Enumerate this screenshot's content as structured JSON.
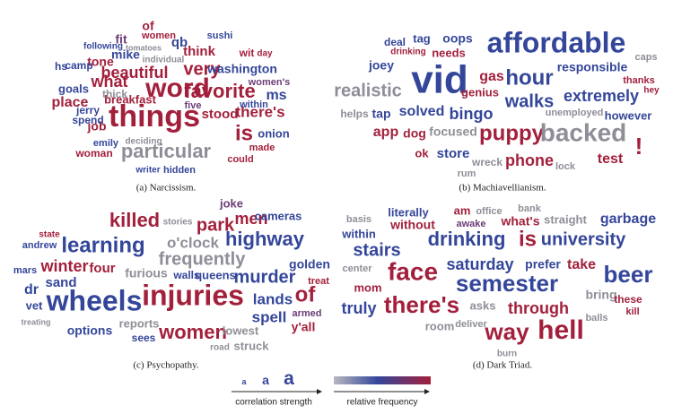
{
  "panels": [
    {
      "caption": "(a) Narcissism.",
      "words": [
        {
          "text": "things",
          "color": "#a3203c"
        },
        {
          "text": "word",
          "color": "#a3203c"
        },
        {
          "text": "favorite",
          "color": "#a3203c"
        },
        {
          "text": "particular",
          "color": "#8e8e98"
        },
        {
          "text": "beautiful",
          "color": "#a3203c"
        },
        {
          "text": "very",
          "color": "#a3203c"
        },
        {
          "text": "think",
          "color": "#a3203c"
        },
        {
          "text": "washington",
          "color": "#34469a"
        },
        {
          "text": "what",
          "color": "#a3203c"
        },
        {
          "text": "is",
          "color": "#a3203c"
        },
        {
          "text": "there's",
          "color": "#a3203c"
        },
        {
          "text": "stood",
          "color": "#a3203c"
        },
        {
          "text": "job",
          "color": "#a3203c"
        },
        {
          "text": "breakfast",
          "color": "#a3203c"
        },
        {
          "text": "five",
          "color": "#6c3c78"
        },
        {
          "text": "place",
          "color": "#a3203c"
        },
        {
          "text": "mike",
          "color": "#34469a"
        },
        {
          "text": "fit",
          "color": "#6c3c78"
        },
        {
          "text": "qb",
          "color": "#34469a"
        },
        {
          "text": "of",
          "color": "#a3203c"
        },
        {
          "text": "women",
          "color": "#a3203c"
        },
        {
          "text": "sushi",
          "color": "#34469a"
        },
        {
          "text": "tone",
          "color": "#a3203c"
        },
        {
          "text": "goals",
          "color": "#34469a"
        },
        {
          "text": "camp",
          "color": "#34469a"
        },
        {
          "text": "hs",
          "color": "#34469a"
        },
        {
          "text": "thick",
          "color": "#8e8e98"
        },
        {
          "text": "jerry",
          "color": "#34469a"
        },
        {
          "text": "spend",
          "color": "#34469a"
        },
        {
          "text": "emily",
          "color": "#34469a"
        },
        {
          "text": "woman",
          "color": "#a3203c"
        },
        {
          "text": "onion",
          "color": "#34469a"
        },
        {
          "text": "ms",
          "color": "#34469a"
        },
        {
          "text": "within",
          "color": "#34469a"
        },
        {
          "text": "could",
          "color": "#a3203c"
        },
        {
          "text": "made",
          "color": "#a3203c"
        },
        {
          "text": "hidden",
          "color": "#34469a"
        },
        {
          "text": "writer",
          "color": "#34469a"
        },
        {
          "text": "wit",
          "color": "#a3203c"
        },
        {
          "text": "day",
          "color": "#a3203c"
        },
        {
          "text": "women's",
          "color": "#6c3c78"
        },
        {
          "text": "deciding",
          "color": "#8e8e98"
        },
        {
          "text": "individual",
          "color": "#8e8e98"
        },
        {
          "text": "tomatoes",
          "color": "#8e8e98"
        },
        {
          "text": "following",
          "color": "#34469a"
        }
      ]
    },
    {
      "caption": "(b) Machiavellianism.",
      "words": [
        {
          "text": "affordable",
          "color": "#34469a"
        },
        {
          "text": "vid",
          "color": "#34469a"
        },
        {
          "text": "realistic",
          "color": "#8e8e98"
        },
        {
          "text": "hour",
          "color": "#34469a"
        },
        {
          "text": "responsible",
          "color": "#34469a"
        },
        {
          "text": "walks",
          "color": "#34469a"
        },
        {
          "text": "extremely",
          "color": "#34469a"
        },
        {
          "text": "puppy",
          "color": "#a3203c"
        },
        {
          "text": "backed",
          "color": "#8e8e98"
        },
        {
          "text": "phone",
          "color": "#a3203c"
        },
        {
          "text": "test",
          "color": "#a3203c"
        },
        {
          "text": "!",
          "color": "#a3203c"
        },
        {
          "text": "however",
          "color": "#34469a"
        },
        {
          "text": "thanks",
          "color": "#a3203c"
        },
        {
          "text": "caps",
          "color": "#8e8e98"
        },
        {
          "text": "hey",
          "color": "#a3203c"
        },
        {
          "text": "bingo",
          "color": "#34469a"
        },
        {
          "text": "solved",
          "color": "#34469a"
        },
        {
          "text": "focused",
          "color": "#8e8e98"
        },
        {
          "text": "store",
          "color": "#34469a"
        },
        {
          "text": "gas",
          "color": "#a3203c"
        },
        {
          "text": "needs",
          "color": "#a3203c"
        },
        {
          "text": "drinking",
          "color": "#a3203c"
        },
        {
          "text": "oops",
          "color": "#34469a"
        },
        {
          "text": "tag",
          "color": "#34469a"
        },
        {
          "text": "deal",
          "color": "#34469a"
        },
        {
          "text": "joey",
          "color": "#34469a"
        },
        {
          "text": "genius",
          "color": "#a3203c"
        },
        {
          "text": "tap",
          "color": "#34469a"
        },
        {
          "text": "app",
          "color": "#a3203c"
        },
        {
          "text": "dog",
          "color": "#a3203c"
        },
        {
          "text": "helps",
          "color": "#8e8e98"
        },
        {
          "text": "unemployed",
          "color": "#8e8e98"
        },
        {
          "text": "wreck",
          "color": "#8e8e98"
        },
        {
          "text": "rum",
          "color": "#8e8e98"
        },
        {
          "text": "lock",
          "color": "#8e8e98"
        },
        {
          "text": "ok",
          "color": "#a3203c"
        }
      ]
    },
    {
      "caption": "(c) Psychopathy.",
      "words": [
        {
          "text": "injuries",
          "color": "#a3203c"
        },
        {
          "text": "wheels",
          "color": "#34469a"
        },
        {
          "text": "learning",
          "color": "#34469a"
        },
        {
          "text": "killed",
          "color": "#a3203c"
        },
        {
          "text": "park",
          "color": "#a3203c"
        },
        {
          "text": "men",
          "color": "#a3203c"
        },
        {
          "text": "joke",
          "color": "#6c3c78"
        },
        {
          "text": "highway",
          "color": "#34469a"
        },
        {
          "text": "o'clock",
          "color": "#8e8e98"
        },
        {
          "text": "frequently",
          "color": "#8e8e98"
        },
        {
          "text": "murder",
          "color": "#34469a"
        },
        {
          "text": "women",
          "color": "#a3203c"
        },
        {
          "text": "of",
          "color": "#a3203c"
        },
        {
          "text": "winter",
          "color": "#a3203c"
        },
        {
          "text": "sand",
          "color": "#34469a"
        },
        {
          "text": "vet",
          "color": "#34469a"
        },
        {
          "text": "dr",
          "color": "#34469a"
        },
        {
          "text": "four",
          "color": "#a3203c"
        },
        {
          "text": "furious",
          "color": "#8e8e98"
        },
        {
          "text": "walls",
          "color": "#34469a"
        },
        {
          "text": "queens",
          "color": "#34469a"
        },
        {
          "text": "lands",
          "color": "#34469a"
        },
        {
          "text": "spell",
          "color": "#34469a"
        },
        {
          "text": "y'all",
          "color": "#a3203c"
        },
        {
          "text": "struck",
          "color": "#8e8e98"
        },
        {
          "text": "lowest",
          "color": "#8e8e98"
        },
        {
          "text": "reports",
          "color": "#8e8e98"
        },
        {
          "text": "options",
          "color": "#34469a"
        },
        {
          "text": "sees",
          "color": "#34469a"
        },
        {
          "text": "armed",
          "color": "#6c3c78"
        },
        {
          "text": "golden",
          "color": "#34469a"
        },
        {
          "text": "treat",
          "color": "#a3203c"
        },
        {
          "text": "cameras",
          "color": "#34469a"
        },
        {
          "text": "stories",
          "color": "#8e8e98"
        },
        {
          "text": "andrew",
          "color": "#34469a"
        },
        {
          "text": "state",
          "color": "#a3203c"
        },
        {
          "text": "mars",
          "color": "#34469a"
        },
        {
          "text": "treating",
          "color": "#8e8e98"
        },
        {
          "text": "road",
          "color": "#8e8e98"
        }
      ]
    },
    {
      "caption": "(d) Dark Triad.",
      "words": [
        {
          "text": "hell",
          "color": "#a3203c"
        },
        {
          "text": "way",
          "color": "#a3203c"
        },
        {
          "text": "semester",
          "color": "#34469a"
        },
        {
          "text": "there's",
          "color": "#a3203c"
        },
        {
          "text": "face",
          "color": "#a3203c"
        },
        {
          "text": "drinking",
          "color": "#34469a"
        },
        {
          "text": "is",
          "color": "#a3203c"
        },
        {
          "text": "university",
          "color": "#34469a"
        },
        {
          "text": "stairs",
          "color": "#34469a"
        },
        {
          "text": "saturday",
          "color": "#34469a"
        },
        {
          "text": "beer",
          "color": "#34469a"
        },
        {
          "text": "garbage",
          "color": "#34469a"
        },
        {
          "text": "take",
          "color": "#a3203c"
        },
        {
          "text": "prefer",
          "color": "#34469a"
        },
        {
          "text": "through",
          "color": "#a3203c"
        },
        {
          "text": "truly",
          "color": "#34469a"
        },
        {
          "text": "asks",
          "color": "#8e8e98"
        },
        {
          "text": "bring",
          "color": "#8e8e98"
        },
        {
          "text": "without",
          "color": "#a3203c"
        },
        {
          "text": "literally",
          "color": "#34469a"
        },
        {
          "text": "within",
          "color": "#34469a"
        },
        {
          "text": "what's",
          "color": "#a3203c"
        },
        {
          "text": "straight",
          "color": "#8e8e98"
        },
        {
          "text": "am",
          "color": "#a3203c"
        },
        {
          "text": "awake",
          "color": "#6c3c78"
        },
        {
          "text": "room",
          "color": "#8e8e98"
        },
        {
          "text": "mom",
          "color": "#a3203c"
        },
        {
          "text": "center",
          "color": "#8e8e98"
        },
        {
          "text": "basis",
          "color": "#8e8e98"
        },
        {
          "text": "burn",
          "color": "#8e8e98"
        },
        {
          "text": "balls",
          "color": "#8e8e98"
        },
        {
          "text": "deliver",
          "color": "#8e8e98"
        },
        {
          "text": "these",
          "color": "#a3203c"
        },
        {
          "text": "kill",
          "color": "#a3203c"
        },
        {
          "text": "office",
          "color": "#8e8e98"
        },
        {
          "text": "bank",
          "color": "#8e8e98"
        }
      ]
    }
  ],
  "legend": {
    "size_samples": [
      "a",
      "a",
      "a"
    ],
    "size_label": "correlation strength",
    "color_label": "relative frequency"
  }
}
